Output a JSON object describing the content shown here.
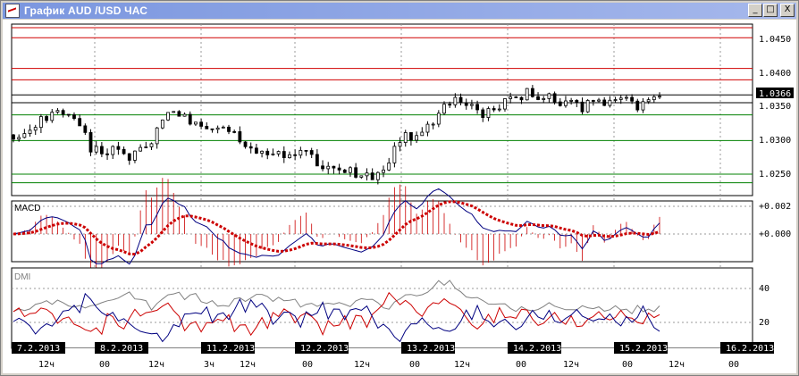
{
  "window": {
    "title": "График AUD /USD  ЧАС",
    "buttons": {
      "minimize": "_",
      "maximize": "□",
      "close": "X"
    }
  },
  "price_axis": {
    "ticks": [
      "1.0450",
      "1.0400",
      "1.0350",
      "1.0300",
      "1.0250"
    ],
    "current": "1.0366"
  },
  "macd": {
    "label": "MACD",
    "ticks": [
      "+0.002",
      "+0.000"
    ]
  },
  "dmi": {
    "label": "DMI",
    "ticks": [
      "40",
      "20"
    ]
  },
  "dates": [
    "7.2.2013",
    "8.2.2013",
    "11.2.2013",
    "12.2.2013",
    "13.2.2013",
    "14.2.2013",
    "15.2.2013",
    "16.2.2013"
  ],
  "hours": [
    "12ч",
    "00",
    "12ч",
    "3ч",
    "12ч",
    "00",
    "12ч",
    "00",
    "12ч",
    "00",
    "12ч",
    "00",
    "12ч",
    "00"
  ],
  "colors": {
    "resistance": "#d00000",
    "support": "#008000",
    "macd_signal": "#cc0000",
    "macd_line": "#000080",
    "dmi_adx": "#808080",
    "dmi_plus": "#cc0000",
    "dmi_minus": "#000080"
  },
  "chart_data": {
    "type": "candlestick",
    "instrument": "AUD/USD",
    "timeframe": "1H",
    "y_range": [
      1.0225,
      1.0465
    ],
    "levels_red": [
      1.046,
      1.0446,
      1.0403,
      1.0387
    ],
    "levels_black": [
      1.0366,
      1.0355
    ],
    "levels_green": [
      1.0338,
      1.0302,
      1.0255,
      1.0243
    ],
    "close_path": [
      [
        0,
        1.031
      ],
      [
        6,
        1.0315
      ],
      [
        10,
        1.033
      ],
      [
        15,
        1.034
      ],
      [
        20,
        1.0335
      ],
      [
        25,
        1.0325
      ],
      [
        28,
        1.029
      ],
      [
        33,
        1.0285
      ],
      [
        38,
        1.029
      ],
      [
        42,
        1.0275
      ],
      [
        46,
        1.0295
      ],
      [
        50,
        1.03
      ],
      [
        55,
        1.034
      ],
      [
        58,
        1.0345
      ],
      [
        64,
        1.033
      ],
      [
        70,
        1.032
      ],
      [
        76,
        1.0325
      ],
      [
        82,
        1.0305
      ],
      [
        88,
        1.0285
      ],
      [
        94,
        1.028
      ],
      [
        100,
        1.0285
      ],
      [
        106,
        1.029
      ],
      [
        110,
        1.027
      ],
      [
        115,
        1.0265
      ],
      [
        120,
        1.026
      ],
      [
        126,
        1.0255
      ],
      [
        130,
        1.0248
      ],
      [
        134,
        1.026
      ],
      [
        138,
        1.029
      ],
      [
        142,
        1.031
      ],
      [
        146,
        1.0305
      ],
      [
        150,
        1.032
      ],
      [
        154,
        1.034
      ],
      [
        158,
        1.0355
      ],
      [
        162,
        1.036
      ],
      [
        166,
        1.035
      ],
      [
        170,
        1.034
      ],
      [
        174,
        1.0345
      ],
      [
        178,
        1.0355
      ],
      [
        182,
        1.036
      ],
      [
        186,
        1.037
      ],
      [
        190,
        1.0358
      ],
      [
        194,
        1.0362
      ],
      [
        198,
        1.0355
      ],
      [
        202,
        1.0358
      ],
      [
        206,
        1.0345
      ],
      [
        210,
        1.036
      ],
      [
        214,
        1.035
      ],
      [
        218,
        1.0355
      ],
      [
        222,
        1.0365
      ],
      [
        226,
        1.035
      ],
      [
        230,
        1.0355
      ],
      [
        234,
        1.0366
      ]
    ]
  }
}
